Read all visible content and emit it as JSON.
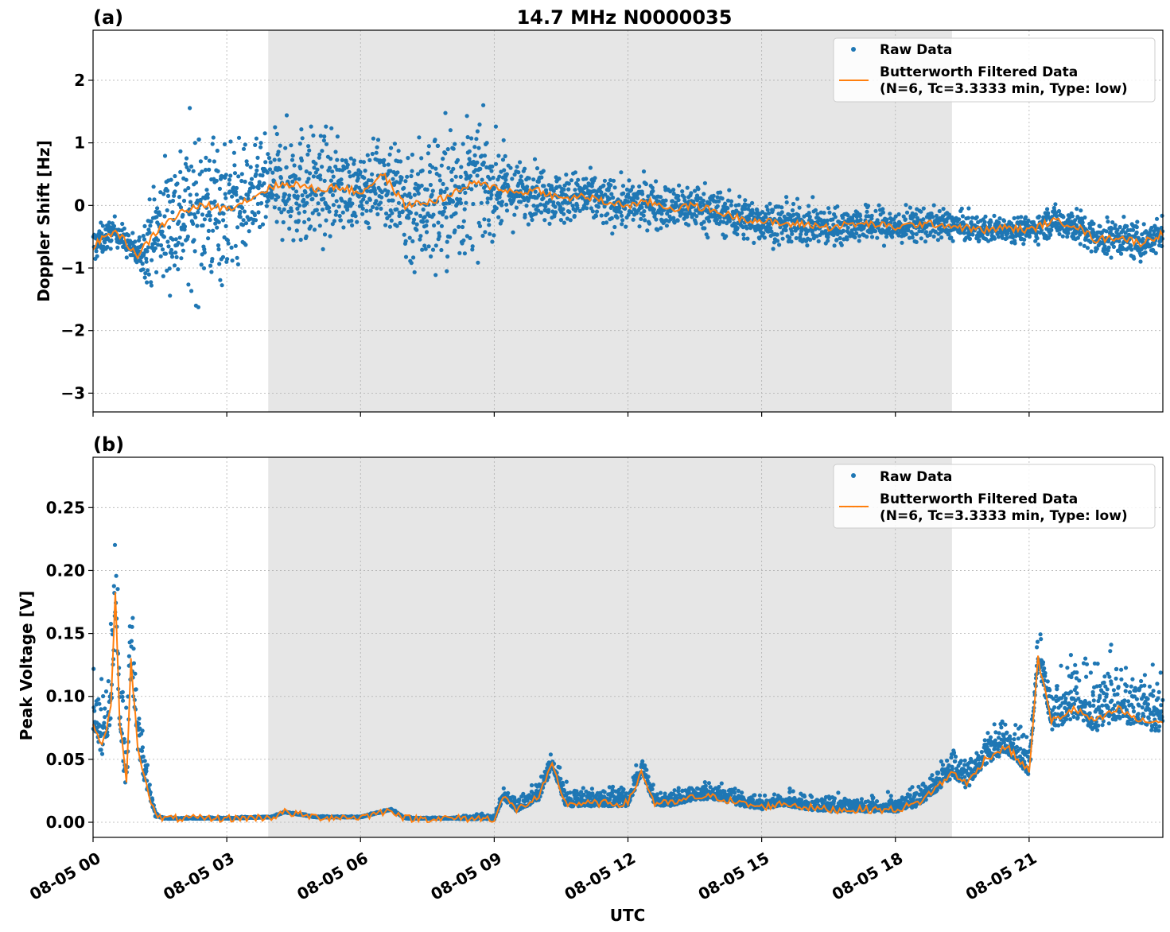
{
  "figure": {
    "title": "14.7 MHz N0000035",
    "xlabel": "UTC"
  },
  "chart_data": [
    {
      "type": "scatter",
      "panel_label": "(a)",
      "ylabel": "Doppler Shift [Hz]",
      "xlim": [
        "2023-08-05 00:00",
        "2023-08-05 24:00"
      ],
      "ylim": [
        -3.3,
        2.8
      ],
      "x_ticks": [
        "08-05 00",
        "08-05 03",
        "08-05 06",
        "08-05 09",
        "08-05 12",
        "08-05 15",
        "08-05 18",
        "08-05 21"
      ],
      "x_tick_labels_visible": false,
      "y_ticks": [
        2,
        1,
        0,
        -1,
        -2,
        -3
      ],
      "y_tick_labels": [
        "2",
        "1",
        "0",
        "−1",
        "−2",
        "−3"
      ],
      "shaded_region_hours": [
        3.93,
        19.27
      ],
      "grid": true,
      "legend_placement": "top-right",
      "series": [
        {
          "name": "Raw Data",
          "kind": "points",
          "color": "#1f77b4"
        },
        {
          "name": "Butterworth Filtered Data",
          "name_line2": "(N=6, Tc=3.3333 min, Type: low)",
          "kind": "line",
          "color": "#ff7f0e"
        }
      ],
      "filtered_hours": [
        0,
        0.5,
        1.0,
        1.5,
        2.0,
        2.5,
        3.0,
        3.5,
        4.0,
        4.5,
        5.0,
        5.5,
        6.0,
        6.5,
        7.0,
        7.5,
        8.0,
        8.5,
        9.0,
        9.5,
        10.0,
        10.5,
        11.0,
        11.5,
        12.0,
        12.5,
        13.0,
        13.5,
        14.0,
        14.5,
        15.0,
        15.5,
        16.0,
        16.5,
        17.0,
        17.5,
        18.0,
        18.5,
        19.0,
        19.5,
        20.0,
        20.5,
        21.0,
        21.5,
        22.0,
        22.5,
        23.0,
        23.5,
        24.0
      ],
      "filtered_values": [
        -0.65,
        -0.4,
        -0.8,
        -0.35,
        -0.1,
        0.0,
        -0.05,
        0.1,
        0.3,
        0.35,
        0.25,
        0.3,
        0.2,
        0.5,
        0.0,
        0.05,
        0.15,
        0.35,
        0.3,
        0.2,
        0.25,
        0.1,
        0.15,
        0.05,
        0.0,
        0.05,
        -0.05,
        0.0,
        -0.1,
        -0.2,
        -0.25,
        -0.3,
        -0.3,
        -0.35,
        -0.3,
        -0.3,
        -0.35,
        -0.3,
        -0.3,
        -0.35,
        -0.4,
        -0.35,
        -0.4,
        -0.25,
        -0.3,
        -0.55,
        -0.5,
        -0.6,
        -0.45
      ],
      "raw_spread_hours": [
        0,
        0.5,
        1.0,
        1.5,
        2.0,
        2.5,
        3.0,
        3.5,
        4.0,
        4.5,
        5.0,
        5.5,
        6.0,
        6.5,
        7.0,
        7.5,
        8.0,
        8.5,
        9.0,
        9.5,
        10.0,
        11.0,
        12.0,
        13.0,
        14.0,
        15.0,
        16.0,
        17.0,
        18.0,
        19.0,
        20.0,
        21.0,
        22.0,
        23.0,
        24.0
      ],
      "raw_spread_hz": [
        0.35,
        0.25,
        0.3,
        1.2,
        1.5,
        1.6,
        1.4,
        1.0,
        0.9,
        1.2,
        1.1,
        0.9,
        0.6,
        0.9,
        1.3,
        1.4,
        1.5,
        1.3,
        0.9,
        0.6,
        0.5,
        0.5,
        0.45,
        0.45,
        0.45,
        0.4,
        0.4,
        0.35,
        0.35,
        0.3,
        0.25,
        0.25,
        0.35,
        0.35,
        0.35
      ]
    },
    {
      "type": "scatter",
      "panel_label": "(b)",
      "ylabel": "Peak Voltage [V]",
      "xlim": [
        "2023-08-05 00:00",
        "2023-08-05 24:00"
      ],
      "ylim": [
        -0.012,
        0.29
      ],
      "x_ticks": [
        "08-05 00",
        "08-05 03",
        "08-05 06",
        "08-05 09",
        "08-05 12",
        "08-05 15",
        "08-05 18",
        "08-05 21"
      ],
      "y_ticks": [
        0.25,
        0.2,
        0.15,
        0.1,
        0.05,
        0.0
      ],
      "y_tick_labels": [
        "0.25",
        "0.20",
        "0.15",
        "0.10",
        "0.05",
        "0.00"
      ],
      "shaded_region_hours": [
        3.93,
        19.27
      ],
      "grid": true,
      "legend_placement": "top-right",
      "series": [
        {
          "name": "Raw Data",
          "kind": "points",
          "color": "#1f77b4"
        },
        {
          "name": "Butterworth Filtered Data",
          "name_line2": "(N=6, Tc=3.3333 min, Type: low)",
          "kind": "line",
          "color": "#ff7f0e"
        }
      ],
      "filtered_hours": [
        0,
        0.2,
        0.4,
        0.5,
        0.6,
        0.75,
        0.85,
        1.0,
        1.2,
        1.4,
        1.6,
        2.0,
        3.0,
        4.0,
        4.3,
        5.0,
        6.0,
        6.7,
        7.0,
        8.0,
        9.0,
        9.2,
        9.5,
        10.0,
        10.3,
        10.6,
        11.0,
        11.5,
        12.0,
        12.3,
        12.6,
        13.0,
        13.5,
        14.0,
        14.5,
        15.0,
        15.5,
        16.0,
        16.5,
        17.0,
        17.5,
        18.0,
        18.5,
        19.0,
        19.3,
        19.6,
        20.0,
        20.5,
        21.0,
        21.2,
        21.5,
        22.0,
        22.5,
        23.0,
        23.5,
        24.0
      ],
      "filtered_values": [
        0.08,
        0.06,
        0.09,
        0.18,
        0.08,
        0.03,
        0.13,
        0.06,
        0.03,
        0.005,
        0.003,
        0.003,
        0.003,
        0.004,
        0.008,
        0.004,
        0.004,
        0.01,
        0.003,
        0.003,
        0.003,
        0.02,
        0.01,
        0.02,
        0.045,
        0.015,
        0.015,
        0.015,
        0.015,
        0.04,
        0.015,
        0.015,
        0.02,
        0.02,
        0.015,
        0.012,
        0.015,
        0.012,
        0.01,
        0.01,
        0.01,
        0.01,
        0.015,
        0.03,
        0.04,
        0.03,
        0.05,
        0.06,
        0.04,
        0.13,
        0.08,
        0.09,
        0.08,
        0.09,
        0.08,
        0.08
      ],
      "raw_spread_hours": [
        0,
        0.5,
        1.0,
        1.3,
        1.5,
        4.0,
        8.0,
        9.0,
        10.0,
        12.0,
        15.0,
        18.0,
        19.0,
        20.0,
        21.0,
        21.3,
        22.0,
        23.0,
        24.0
      ],
      "raw_spread_v": [
        0.04,
        0.08,
        0.05,
        0.01,
        0.001,
        0.001,
        0.001,
        0.006,
        0.015,
        0.015,
        0.012,
        0.012,
        0.02,
        0.03,
        0.03,
        0.045,
        0.05,
        0.05,
        0.05
      ]
    }
  ]
}
